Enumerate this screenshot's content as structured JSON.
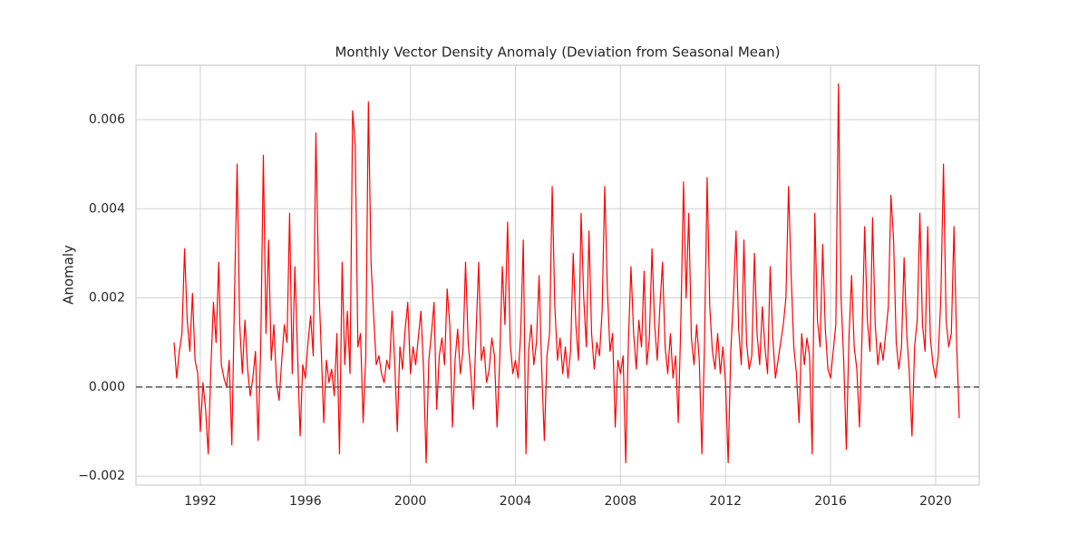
{
  "chart_data": {
    "type": "line",
    "title": "Monthly Vector Density Anomaly (Deviation from Seasonal Mean)",
    "ylabel": "Anomaly",
    "color": "#ff0000",
    "grid": true,
    "hline": 0,
    "xlim": [
      1989.55,
      2021.66
    ],
    "xticks": [
      1992,
      1996,
      2000,
      2004,
      2008,
      2012,
      2016,
      2020
    ],
    "ylim": [
      -0.0022,
      0.00722
    ],
    "yticks": [
      {
        "value": -0.002,
        "label": "−0.002"
      },
      {
        "value": 0,
        "label": "0.000"
      },
      {
        "value": 0.002,
        "label": "0.002"
      },
      {
        "value": 0.004,
        "label": "0.004"
      },
      {
        "value": 0.006,
        "label": "0.006"
      }
    ],
    "x": [
      1991,
      1991.1,
      1991.2,
      1991.3,
      1991.4,
      1991.5,
      1991.6,
      1991.7,
      1991.8,
      1991.9,
      1992,
      1992.1,
      1992.2,
      1992.3,
      1992.4,
      1992.5,
      1992.6,
      1992.7,
      1992.8,
      1992.9,
      1993,
      1993.1,
      1993.2,
      1993.3,
      1993.4,
      1993.5,
      1993.6,
      1993.7,
      1993.8,
      1993.9,
      1994,
      1994.1,
      1994.2,
      1994.3,
      1994.4,
      1994.5,
      1994.6,
      1994.7,
      1994.8,
      1994.9,
      1995,
      1995.1,
      1995.2,
      1995.3,
      1995.4,
      1995.5,
      1995.6,
      1995.7,
      1995.8,
      1995.9,
      1996,
      1996.1,
      1996.2,
      1996.3,
      1996.4,
      1996.5,
      1996.6,
      1996.7,
      1996.8,
      1996.9,
      1997,
      1997.1,
      1997.2,
      1997.3,
      1997.4,
      1997.5,
      1997.6,
      1997.7,
      1997.8,
      1997.9,
      1998,
      1998.1,
      1998.2,
      1998.3,
      1998.4,
      1998.5,
      1998.6,
      1998.7,
      1998.8,
      1998.9,
      1999,
      1999.1,
      1999.2,
      1999.3,
      1999.4,
      1999.5,
      1999.6,
      1999.7,
      1999.8,
      1999.9,
      2000,
      2000.1,
      2000.2,
      2000.3,
      2000.4,
      2000.5,
      2000.6,
      2000.7,
      2000.8,
      2000.9,
      2001,
      2001.1,
      2001.2,
      2001.3,
      2001.4,
      2001.5,
      2001.6,
      2001.7,
      2001.8,
      2001.9,
      2002,
      2002.1,
      2002.2,
      2002.3,
      2002.4,
      2002.5,
      2002.6,
      2002.7,
      2002.8,
      2002.9,
      2003,
      2003.1,
      2003.2,
      2003.3,
      2003.4,
      2003.5,
      2003.6,
      2003.7,
      2003.8,
      2003.9,
      2004,
      2004.1,
      2004.2,
      2004.3,
      2004.4,
      2004.5,
      2004.6,
      2004.7,
      2004.8,
      2004.9,
      2005,
      2005.1,
      2005.2,
      2005.3,
      2005.4,
      2005.5,
      2005.6,
      2005.7,
      2005.8,
      2005.9,
      2006,
      2006.1,
      2006.2,
      2006.3,
      2006.4,
      2006.5,
      2006.6,
      2006.7,
      2006.8,
      2006.9,
      2007,
      2007.1,
      2007.2,
      2007.3,
      2007.4,
      2007.5,
      2007.6,
      2007.7,
      2007.8,
      2007.9,
      2008,
      2008.1,
      2008.2,
      2008.3,
      2008.4,
      2008.5,
      2008.6,
      2008.7,
      2008.8,
      2008.9,
      2009,
      2009.1,
      2009.2,
      2009.3,
      2009.4,
      2009.5,
      2009.6,
      2009.7,
      2009.8,
      2009.9,
      2010,
      2010.1,
      2010.2,
      2010.3,
      2010.4,
      2010.5,
      2010.6,
      2010.7,
      2010.8,
      2010.9,
      2011,
      2011.1,
      2011.2,
      2011.3,
      2011.4,
      2011.5,
      2011.6,
      2011.7,
      2011.8,
      2011.9,
      2012,
      2012.1,
      2012.2,
      2012.3,
      2012.4,
      2012.5,
      2012.6,
      2012.7,
      2012.8,
      2012.9,
      2013,
      2013.1,
      2013.2,
      2013.3,
      2013.4,
      2013.5,
      2013.6,
      2013.7,
      2013.8,
      2013.9,
      2014,
      2014.1,
      2014.2,
      2014.3,
      2014.4,
      2014.5,
      2014.6,
      2014.7,
      2014.8,
      2014.9,
      2015,
      2015.1,
      2015.2,
      2015.3,
      2015.4,
      2015.5,
      2015.6,
      2015.7,
      2015.8,
      2015.9,
      2016,
      2016.1,
      2016.2,
      2016.3,
      2016.4,
      2016.5,
      2016.6,
      2016.7,
      2016.8,
      2016.9,
      2017,
      2017.1,
      2017.2,
      2017.3,
      2017.4,
      2017.5,
      2017.6,
      2017.7,
      2017.8,
      2017.9,
      2018,
      2018.1,
      2018.2,
      2018.3,
      2018.4,
      2018.5,
      2018.6,
      2018.7,
      2018.8,
      2018.9,
      2019,
      2019.1,
      2019.2,
      2019.3,
      2019.4,
      2019.5,
      2019.6,
      2019.7,
      2019.8,
      2019.9,
      2020,
      2020.1,
      2020.2,
      2020.3,
      2020.4,
      2020.5,
      2020.6,
      2020.7,
      2020.8,
      2020.9
    ],
    "values": [
      0.001,
      0.0002,
      0.0008,
      0.0012,
      0.0031,
      0.0015,
      0.0008,
      0.0021,
      0.0006,
      0.0003,
      -0.001,
      0.0001,
      -0.0005,
      -0.0015,
      0.0004,
      0.0019,
      0.001,
      0.0028,
      0.0005,
      0.0002,
      0,
      0.0006,
      -0.0013,
      0.002,
      0.005,
      0.0014,
      0.0003,
      0.0015,
      0.0004,
      -0.0002,
      0.0002,
      0.0008,
      -0.0012,
      0.0009,
      0.0052,
      0.0012,
      0.0033,
      0.0006,
      0.0014,
      0.0001,
      -0.0003,
      0.0006,
      0.0014,
      0.001,
      0.0039,
      0.0003,
      0.0027,
      0.0008,
      -0.0011,
      0.0005,
      0.0002,
      0.001,
      0.0016,
      0.0007,
      0.0057,
      0.0025,
      0.0009,
      -0.0008,
      0.0006,
      0.0001,
      0.0004,
      -0.0002,
      0.0012,
      -0.0015,
      0.0028,
      0.0005,
      0.0017,
      0.0003,
      0.0062,
      0.0054,
      0.0009,
      0.0012,
      -0.0008,
      0.0007,
      0.0064,
      0.0028,
      0.0016,
      0.0005,
      0.0007,
      0.0003,
      0.0001,
      0.0006,
      0.0004,
      0.0017,
      0.0006,
      -0.001,
      0.0009,
      0.0004,
      0.0013,
      0.0019,
      0.0003,
      0.0009,
      0.0005,
      0.0011,
      0.0017,
      0.0004,
      -0.0017,
      0.0006,
      0.0012,
      0.0019,
      -0.0005,
      0.0007,
      0.0011,
      0.0005,
      0.0022,
      0.0014,
      -0.0009,
      0.0006,
      0.0013,
      0.0003,
      0.0008,
      0.0028,
      0.001,
      0.0003,
      -0.0005,
      0.0012,
      0.0028,
      0.0006,
      0.0009,
      0.0001,
      0.0004,
      0.0011,
      0.0007,
      -0.0009,
      0.0006,
      0.0027,
      0.0014,
      0.0037,
      0.001,
      0.0003,
      0.0006,
      0.0002,
      0.0012,
      0.0033,
      -0.0015,
      0.0008,
      0.0014,
      0.0005,
      0.001,
      0.0025,
      0.0004,
      -0.0012,
      0.0007,
      0.0012,
      0.0045,
      0.0018,
      0.0006,
      0.0011,
      0.0003,
      0.0009,
      0.0002,
      0.0008,
      0.003,
      0.0014,
      0.0006,
      0.0039,
      0.002,
      0.0009,
      0.0035,
      0.0012,
      0.0004,
      0.001,
      0.0007,
      0.0017,
      0.0045,
      0.0022,
      0.0008,
      0.0012,
      -0.0009,
      0.0006,
      0.0003,
      0.0007,
      -0.0017,
      0.001,
      0.0027,
      0.0012,
      0.0004,
      0.0015,
      0.0009,
      0.0026,
      0.0005,
      0.0011,
      0.0031,
      0.0014,
      0.0006,
      0.0018,
      0.0028,
      0.0009,
      0.0003,
      0.0012,
      0.0002,
      0.0007,
      -0.0008,
      0.0015,
      0.0046,
      0.002,
      0.0039,
      0.0011,
      0.0005,
      0.0014,
      0.0006,
      -0.0015,
      0.001,
      0.0047,
      0.0018,
      0.0008,
      0.0004,
      0.0012,
      0.0003,
      0.0009,
      0.0001,
      -0.0017,
      0.0008,
      0.002,
      0.0035,
      0.0013,
      0.0005,
      0.0033,
      0.001,
      0.0004,
      0.0007,
      0.003,
      0.0012,
      0.0005,
      0.0018,
      0.0009,
      0.0003,
      0.0027,
      0.0011,
      0.0002,
      0.0006,
      0.001,
      0.0014,
      0.002,
      0.0045,
      0.0025,
      0.0009,
      0.0003,
      -0.0008,
      0.0012,
      0.0005,
      0.0011,
      0.0007,
      -0.0015,
      0.0039,
      0.0015,
      0.0009,
      0.0032,
      0.0013,
      0.0004,
      0.0002,
      0.0008,
      0.0014,
      0.0068,
      0.002,
      0.0006,
      -0.0014,
      0.0011,
      0.0025,
      0.0009,
      0.0004,
      -0.0009,
      0.0012,
      0.0036,
      0.0015,
      0.0008,
      0.0038,
      0.0014,
      0.0005,
      0.001,
      0.0006,
      0.0012,
      0.0018,
      0.0043,
      0.0033,
      0.001,
      0.0004,
      0.0009,
      0.0029,
      0.0012,
      0.0003,
      -0.0011,
      0.0009,
      0.0015,
      0.0039,
      0.0014,
      0.0008,
      0.0036,
      0.0011,
      0.0005,
      0.0002,
      0.0007,
      0.002,
      0.005,
      0.0015,
      0.0009,
      0.0012,
      0.0036,
      0.001,
      -0.0007
    ]
  }
}
